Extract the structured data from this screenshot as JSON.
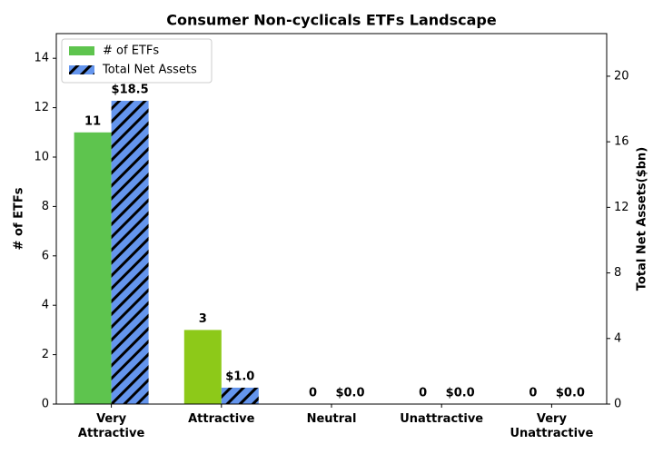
{
  "chart_data": {
    "type": "bar",
    "title": "Consumer Non-cyclicals ETFs Landscape",
    "categories": [
      "Very\nAttractive",
      "Attractive",
      "Neutral",
      "Unattractive",
      "Very\nUnattractive"
    ],
    "series": [
      {
        "name": "# of ETFs",
        "color": "#5ec44e",
        "colors": [
          "#5ec44e",
          "#8dc919",
          "#5ec44e",
          "#5ec44e",
          "#5ec44e"
        ],
        "values": [
          11,
          3,
          0,
          0,
          0
        ]
      },
      {
        "name": "Total Net Assets",
        "color": "#6495ed",
        "hatch": true,
        "axis": "y2",
        "values": [
          18.5,
          1.0,
          0.0,
          0.0,
          0.0
        ],
        "value_labels": [
          "$18.5",
          "$1.0",
          "$0.0",
          "$0.0",
          "$0.0"
        ]
      }
    ],
    "ylabel": "# of ETFs",
    "y2label": "Total Net Assets($bn)",
    "ylim": [
      0,
      15
    ],
    "yticks": [
      0,
      2,
      4,
      6,
      8,
      10,
      12,
      14
    ],
    "y2lim": [
      0,
      22.6
    ],
    "y2ticks": [
      0,
      4,
      8,
      12,
      16,
      20
    ],
    "legend": "upper left",
    "grid": false
  }
}
